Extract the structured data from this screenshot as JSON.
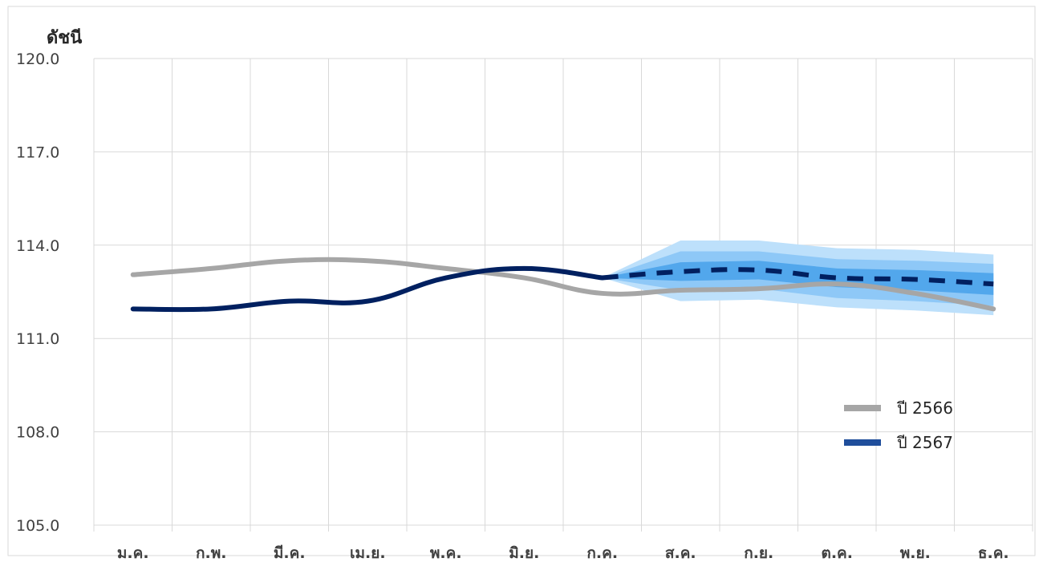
{
  "chart_data": {
    "type": "line",
    "ylabel": "ดัชนี",
    "xlabel": "",
    "ylim": [
      105.0,
      120.0
    ],
    "yticks": [
      "105.0",
      "108.0",
      "111.0",
      "114.0",
      "117.0",
      "120.0"
    ],
    "ytick_values": [
      105,
      108,
      111,
      114,
      117,
      120
    ],
    "categories": [
      "ม.ค.",
      "ก.พ.",
      "มี.ค.",
      "เม.ย.",
      "พ.ค.",
      "มิ.ย.",
      "ก.ค.",
      "ส.ค.",
      "ก.ย.",
      "ต.ค.",
      "พ.ย.",
      "ธ.ค."
    ],
    "grid": "vertical and horizontal",
    "legend_position": "right",
    "series": [
      {
        "name": "ปี 2566",
        "color": "#a6a6a6",
        "style": "solid",
        "values": [
          113.05,
          113.25,
          113.5,
          113.5,
          113.25,
          112.95,
          112.45,
          112.55,
          112.6,
          112.75,
          112.45,
          111.95
        ]
      },
      {
        "name": "ปี 2567",
        "color": "#002060",
        "style": "solid",
        "values": [
          111.95,
          111.95,
          112.2,
          112.2,
          112.95,
          113.25,
          112.95,
          null,
          null,
          null,
          null,
          null
        ]
      },
      {
        "name": "ปี 2567 forecast",
        "color": "#002060",
        "style": "dashed",
        "values": [
          null,
          null,
          null,
          null,
          null,
          null,
          112.95,
          113.15,
          113.2,
          112.95,
          112.9,
          112.75
        ]
      }
    ],
    "fan_bands": [
      {
        "color": "#bde0fb",
        "lower": [
          null,
          null,
          null,
          null,
          null,
          null,
          112.95,
          112.2,
          112.25,
          112.0,
          111.9,
          111.75
        ],
        "upper": [
          null,
          null,
          null,
          null,
          null,
          null,
          112.95,
          114.15,
          114.15,
          113.9,
          113.85,
          113.7
        ]
      },
      {
        "color": "#8ec8f7",
        "lower": [
          null,
          null,
          null,
          null,
          null,
          null,
          112.95,
          112.55,
          112.6,
          112.3,
          112.2,
          112.05
        ],
        "upper": [
          null,
          null,
          null,
          null,
          null,
          null,
          112.95,
          113.8,
          113.8,
          113.55,
          113.5,
          113.4
        ]
      },
      {
        "color": "#52a7ec",
        "lower": [
          null,
          null,
          null,
          null,
          null,
          null,
          112.95,
          112.85,
          112.9,
          112.65,
          112.55,
          112.4
        ],
        "upper": [
          null,
          null,
          null,
          null,
          null,
          null,
          112.95,
          113.45,
          113.5,
          113.25,
          113.2,
          113.1
        ]
      }
    ],
    "legend": [
      {
        "label": "ปี 2566",
        "color": "#a6a6a6"
      },
      {
        "label": "ปี 2567",
        "color": "#1f4e9b"
      }
    ]
  }
}
